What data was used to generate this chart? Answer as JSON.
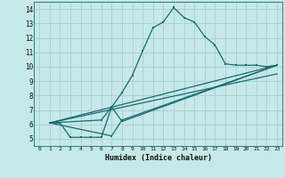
{
  "xlabel": "Humidex (Indice chaleur)",
  "xlim": [
    -0.5,
    23.5
  ],
  "ylim": [
    4.5,
    14.5
  ],
  "yticks": [
    5,
    6,
    7,
    8,
    9,
    10,
    11,
    12,
    13,
    14
  ],
  "xticks": [
    0,
    1,
    2,
    3,
    4,
    5,
    6,
    7,
    8,
    9,
    10,
    11,
    12,
    13,
    14,
    15,
    16,
    17,
    18,
    19,
    20,
    21,
    22,
    23
  ],
  "bg_color": "#c5e8e8",
  "line_color": "#1a6b6b",
  "grid_color": "#a8d4d4",
  "curve1_x": [
    1,
    2,
    3,
    4,
    5,
    6,
    7,
    8,
    9,
    10,
    11,
    12,
    13,
    14,
    15,
    16,
    17,
    18,
    19,
    20,
    21,
    22,
    23
  ],
  "curve1_y": [
    6.1,
    6.1,
    5.1,
    5.1,
    5.1,
    5.1,
    7.2,
    8.2,
    9.4,
    11.1,
    12.7,
    13.1,
    14.1,
    13.4,
    13.1,
    12.1,
    11.5,
    10.2,
    10.1,
    10.1,
    10.1,
    10.0,
    10.1
  ],
  "curve2_x": [
    1,
    6,
    7,
    8,
    23
  ],
  "curve2_y": [
    6.1,
    6.3,
    7.2,
    6.2,
    10.1
  ],
  "curve3_x": [
    1,
    7,
    8,
    23
  ],
  "curve3_y": [
    6.1,
    5.2,
    6.3,
    10.1
  ],
  "line1_x": [
    1,
    23
  ],
  "line1_y": [
    6.1,
    10.1
  ],
  "line2_x": [
    1,
    23
  ],
  "line2_y": [
    6.1,
    9.5
  ]
}
